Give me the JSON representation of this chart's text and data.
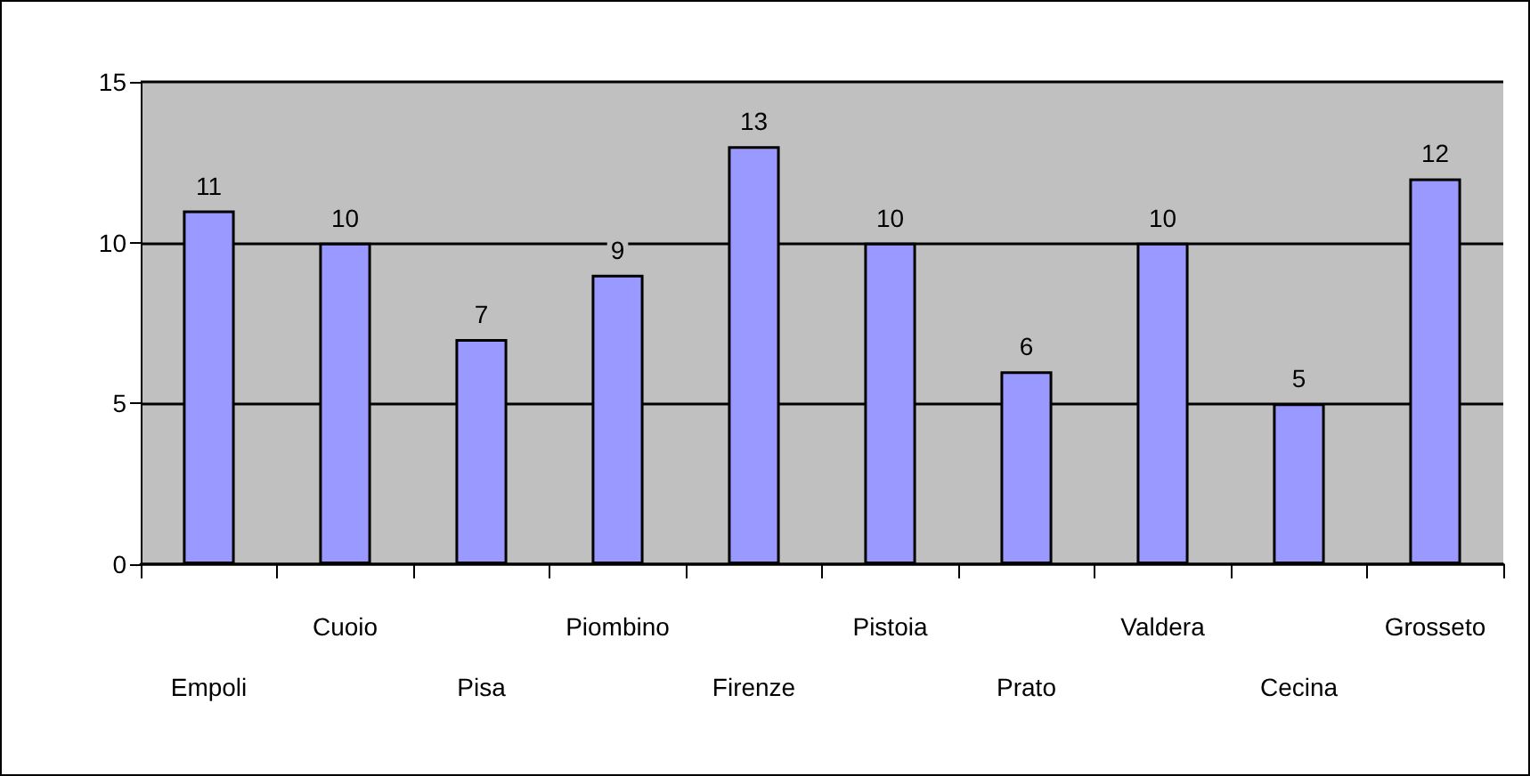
{
  "chart_data": {
    "type": "bar",
    "categories": [
      "Empoli",
      "Cuoio",
      "Pisa",
      "Piombino",
      "Firenze",
      "Pistoia",
      "Prato",
      "Valdera",
      "Cecina",
      "Grosseto"
    ],
    "values": [
      11,
      10,
      7,
      9,
      13,
      10,
      6,
      10,
      5,
      12
    ],
    "color": "#9999ff",
    "ylim": [
      0,
      15
    ],
    "yticks": [
      0,
      5,
      10,
      15
    ],
    "grid": "y",
    "data_labels": true
  }
}
